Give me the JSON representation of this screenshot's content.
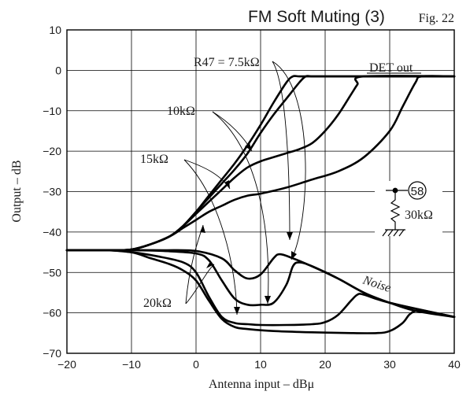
{
  "chart_data": {
    "type": "line",
    "title": "FM Soft Muting (3)",
    "figure_label": "Fig. 22",
    "xlabel": "Antenna input  –  dBμ",
    "ylabel": "Output  –  dB",
    "xlim": [
      -20,
      40
    ],
    "ylim": [
      -70,
      10
    ],
    "xticks": [
      -20,
      -10,
      0,
      10,
      20,
      30,
      40
    ],
    "yticks": [
      10,
      0,
      -10,
      -20,
      -30,
      -40,
      -50,
      -60,
      -70
    ],
    "xtick_labels": [
      "−20",
      "−10",
      "0",
      "10",
      "20",
      "30",
      "40"
    ],
    "ytick_labels": [
      "10",
      "0",
      "−10",
      "−20",
      "−30",
      "−40",
      "−50",
      "−60",
      "−70"
    ],
    "grid": true,
    "series": [
      {
        "group": "DET out",
        "resistor": "R47 = 7.5kΩ",
        "x": [
          -20,
          -14,
          -10,
          -7,
          -4,
          -2,
          0,
          2,
          4,
          6,
          8,
          10,
          12,
          14,
          15,
          16,
          18,
          20,
          40
        ],
        "y": [
          -44.5,
          -44.5,
          -44.3,
          -43,
          -41,
          -38.5,
          -35,
          -31,
          -27,
          -23,
          -18.5,
          -13.5,
          -8,
          -3,
          -1.5,
          -1.5,
          -1.5,
          -1.5,
          -1.5
        ]
      },
      {
        "group": "DET out",
        "resistor": "10kΩ",
        "x": [
          -20,
          -14,
          -10,
          -7,
          -4,
          -2,
          0,
          2,
          4,
          6,
          8,
          10,
          12,
          14,
          16,
          17,
          18,
          20,
          40
        ],
        "y": [
          -44.5,
          -44.5,
          -44.3,
          -43,
          -41,
          -38.5,
          -35,
          -31.5,
          -28,
          -24.5,
          -20.5,
          -15.5,
          -11,
          -7,
          -3,
          -1.5,
          -1.5,
          -1.5,
          -1.5
        ]
      },
      {
        "group": "DET out",
        "resistor": "15kΩ",
        "x": [
          -20,
          -14,
          -10,
          -7,
          -4,
          -2,
          0,
          2,
          4,
          6,
          8,
          10,
          12,
          14,
          16,
          18,
          20,
          22,
          24,
          25,
          26,
          40
        ],
        "y": [
          -44.5,
          -44.5,
          -44.3,
          -43,
          -41,
          -38.5,
          -35.5,
          -32.5,
          -29.5,
          -26.5,
          -24,
          -22.5,
          -21.5,
          -20.5,
          -19.5,
          -18,
          -15,
          -11,
          -6,
          -3.5,
          -1.5,
          -1.5
        ]
      },
      {
        "group": "DET out",
        "resistor": "20kΩ",
        "x": [
          -20,
          -14,
          -10,
          -7,
          -4,
          -2,
          0,
          2,
          4,
          6,
          8,
          10,
          14,
          18,
          22,
          26,
          30,
          32,
          34,
          35,
          40
        ],
        "y": [
          -44.5,
          -44.5,
          -44.3,
          -43,
          -41,
          -39,
          -37,
          -35,
          -33.5,
          -32,
          -31,
          -30.5,
          -29,
          -27,
          -25,
          -21.5,
          -15,
          -9,
          -3,
          -1.5,
          -1.5
        ]
      },
      {
        "group": "Noise",
        "resistor": "R47 = 7.5kΩ",
        "x": [
          -20,
          -14,
          -10,
          -5,
          0,
          4,
          6,
          8,
          10,
          12,
          13,
          15,
          18,
          22,
          26,
          30,
          34,
          40
        ],
        "y": [
          -44.5,
          -44.5,
          -44.5,
          -44.5,
          -44.7,
          -46.5,
          -49.5,
          -51.5,
          -50.5,
          -46.5,
          -45.5,
          -46.5,
          -48.5,
          -51.5,
          -55,
          -57.5,
          -59.5,
          -61
        ]
      },
      {
        "group": "Noise",
        "resistor": "10kΩ",
        "x": [
          -20,
          -14,
          -10,
          -5,
          0,
          2,
          4,
          6,
          8,
          10,
          12,
          14,
          15,
          16,
          18,
          22,
          26,
          30,
          40
        ],
        "y": [
          -44.5,
          -44.5,
          -44.5,
          -44.7,
          -45.3,
          -47,
          -52,
          -56.5,
          -58,
          -58,
          -57.5,
          -53,
          -48.5,
          -47.5,
          -48.5,
          -51.5,
          -55,
          -57.5,
          -61
        ]
      },
      {
        "group": "Noise",
        "resistor": "15kΩ",
        "x": [
          -20,
          -14,
          -10,
          -6,
          -2,
          0,
          2,
          4,
          6,
          8,
          10,
          14,
          18,
          20,
          22,
          24,
          25,
          26,
          30,
          40
        ],
        "y": [
          -44.5,
          -44.5,
          -45,
          -46,
          -47.5,
          -50,
          -56,
          -61,
          -62.5,
          -62.8,
          -63,
          -63,
          -62.8,
          -62.3,
          -60.5,
          -57,
          -55.5,
          -55.5,
          -57.5,
          -61
        ]
      },
      {
        "group": "Noise",
        "resistor": "20kΩ",
        "x": [
          -20,
          -14,
          -10,
          -7,
          -4,
          -2,
          0,
          2,
          4,
          6,
          8,
          12,
          18,
          24,
          28,
          30,
          32,
          33,
          34,
          35,
          40
        ],
        "y": [
          -44.5,
          -44.5,
          -45,
          -46.5,
          -48,
          -49.5,
          -52,
          -57,
          -61.5,
          -63.5,
          -64,
          -64.5,
          -64.8,
          -65,
          -65,
          -64.5,
          -62.5,
          -60.5,
          -59.5,
          -59.5,
          -61
        ]
      }
    ],
    "annotations": [
      {
        "text": "R47 = 7.5kΩ"
      },
      {
        "text": "10kΩ"
      },
      {
        "text": "15kΩ"
      },
      {
        "text": "20kΩ"
      },
      {
        "text": "DET out"
      },
      {
        "text": "Noise"
      }
    ],
    "schematic": {
      "pin": "58",
      "resistor": "30kΩ"
    }
  }
}
